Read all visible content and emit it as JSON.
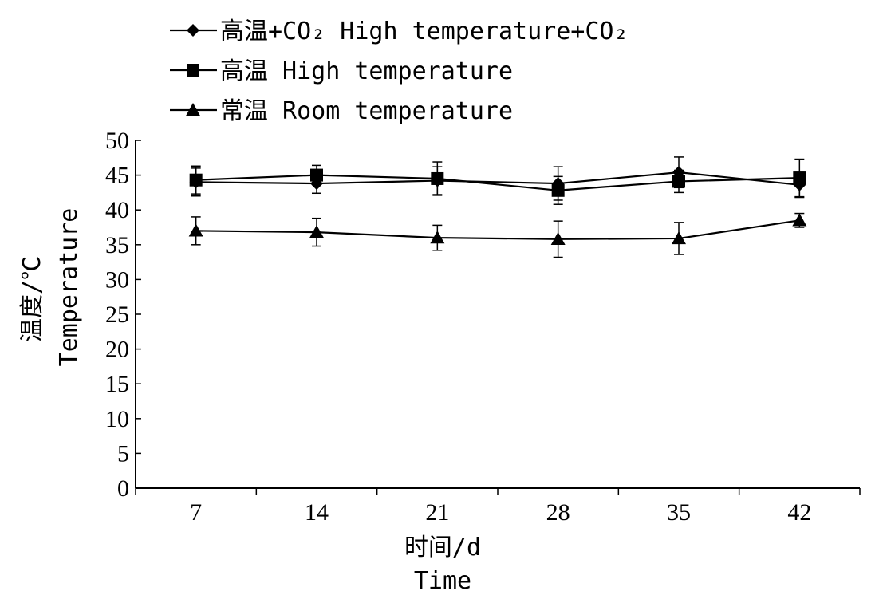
{
  "chart_data": {
    "type": "line",
    "x": [
      7,
      14,
      21,
      28,
      35,
      42
    ],
    "xlabel_cn": "时间/d",
    "xlabel_en": "Time",
    "ylabel_cn": "温度/℃",
    "ylabel_en": "Temperature",
    "ylim": [
      0,
      50
    ],
    "yticks": [
      0,
      5,
      10,
      15,
      20,
      25,
      30,
      35,
      40,
      45,
      50
    ],
    "legend_position": "top-left",
    "grid": false,
    "series": [
      {
        "name": "高温+CO₂ High temperature+CO₂",
        "marker": "diamond",
        "values": [
          44.0,
          43.8,
          44.2,
          43.8,
          45.4,
          43.6
        ],
        "errors": [
          2.0,
          1.4,
          2.0,
          2.4,
          2.2,
          1.8
        ]
      },
      {
        "name": "高温 High temperature",
        "marker": "square",
        "values": [
          44.3,
          45.0,
          44.5,
          42.8,
          44.1,
          44.6
        ],
        "errors": [
          2.0,
          1.4,
          2.4,
          2.0,
          1.6,
          2.7
        ]
      },
      {
        "name": "常温 Room temperature",
        "marker": "triangle",
        "values": [
          37.0,
          36.8,
          36.0,
          35.8,
          35.9,
          38.5
        ],
        "errors": [
          2.0,
          2.0,
          1.8,
          2.6,
          2.3,
          1.0
        ]
      }
    ]
  }
}
